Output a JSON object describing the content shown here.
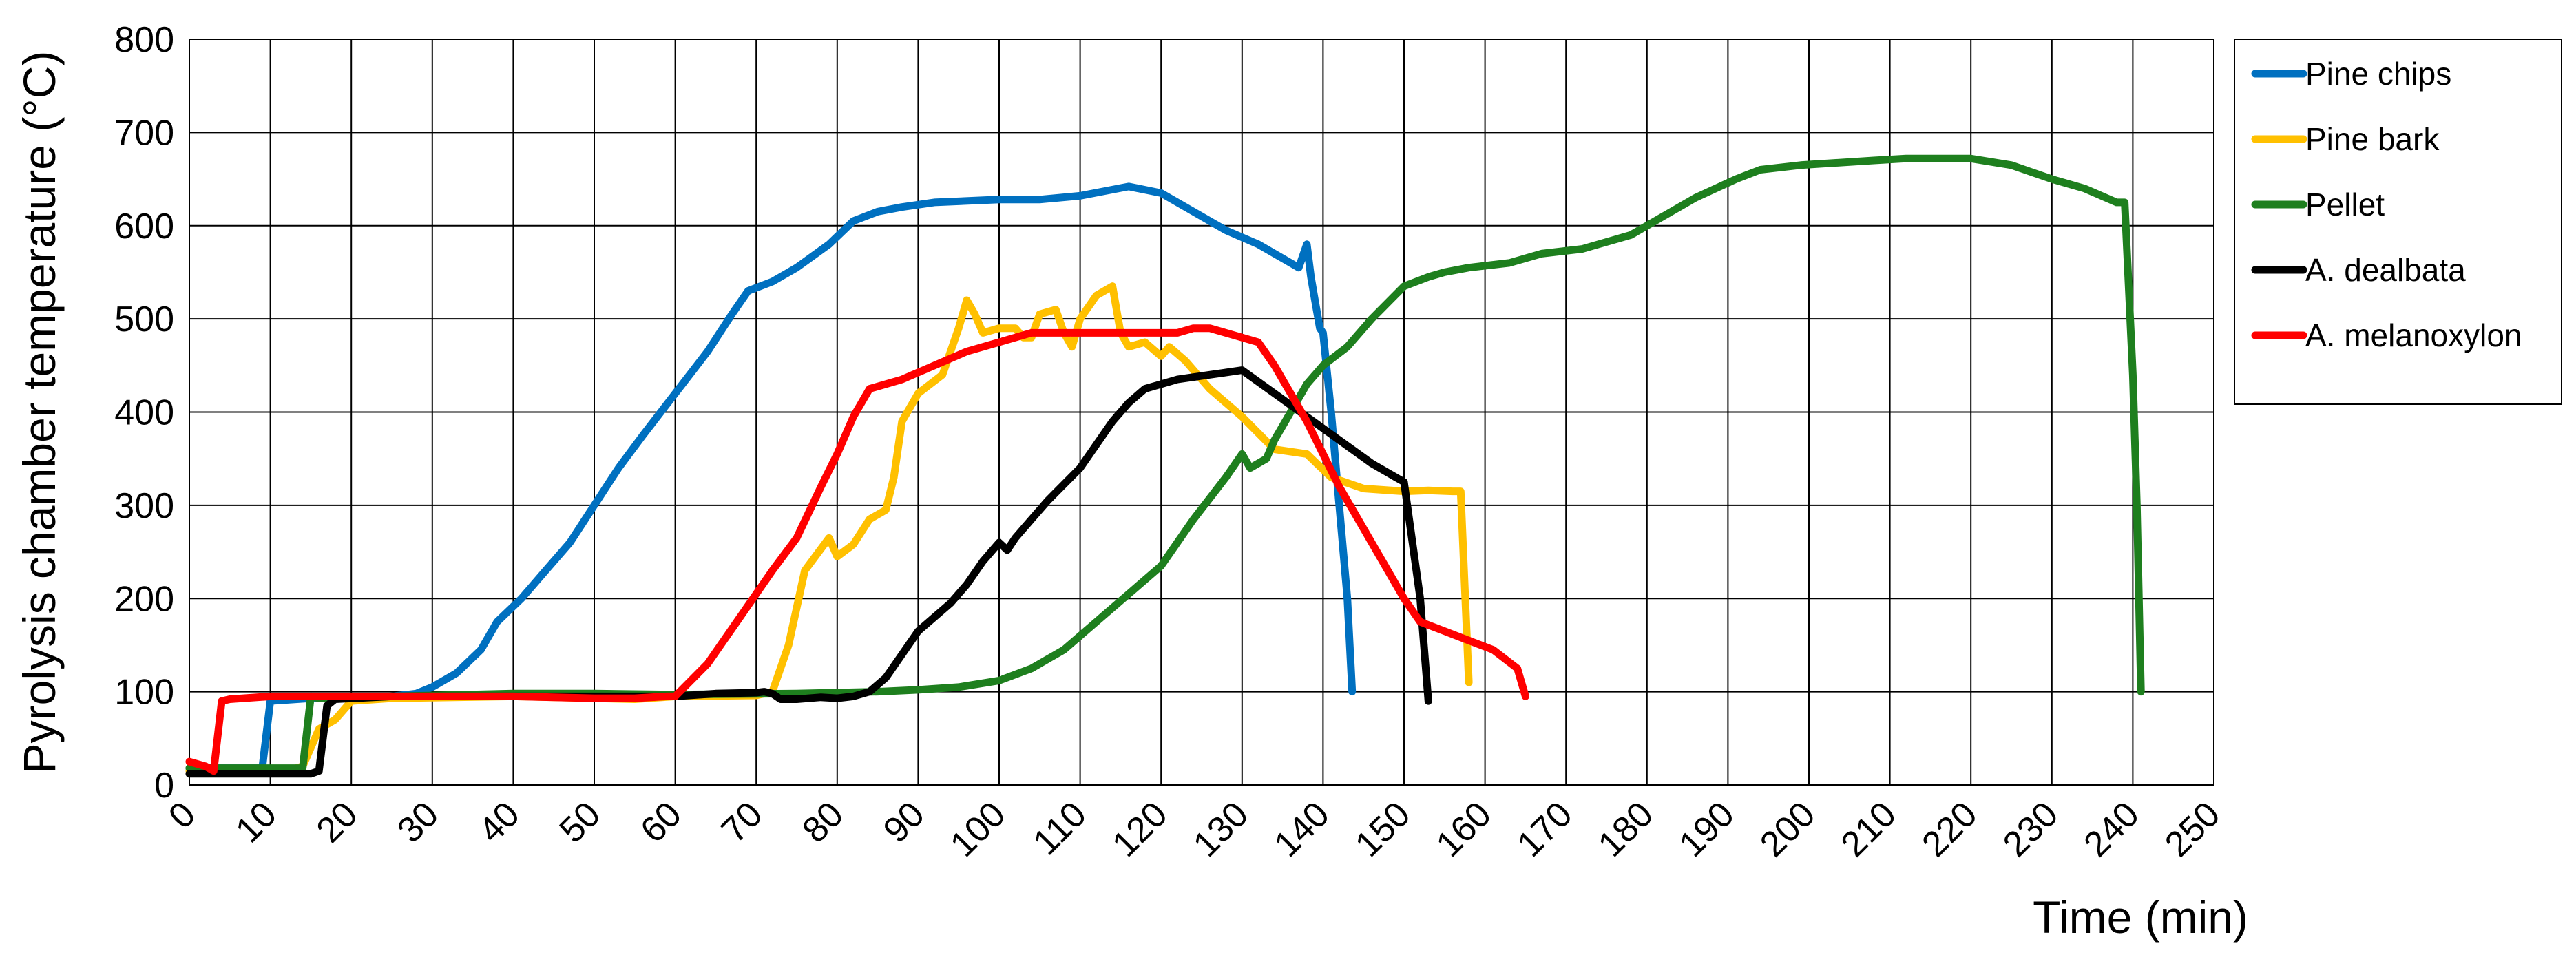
{
  "chart_data": {
    "type": "line",
    "xlabel": "Time (min)",
    "ylabel": "Pyrolysis chamber temperature (°C)",
    "xlim": [
      0,
      250
    ],
    "ylim": [
      0,
      800
    ],
    "x_ticks": [
      "0",
      "10",
      "20",
      "30",
      "40",
      "50",
      "60",
      "70",
      "80",
      "90",
      "100",
      "110",
      "120",
      "130",
      "140",
      "150",
      "160",
      "170",
      "180",
      "190",
      "200",
      "210",
      "220",
      "230",
      "240",
      "250"
    ],
    "y_ticks": [
      "0",
      "100",
      "200",
      "300",
      "400",
      "500",
      "600",
      "700",
      "800"
    ],
    "grid": true,
    "legend_position": "right",
    "series": [
      {
        "name": "Pine chips",
        "color": "#0070C0",
        "points": [
          [
            0,
            18
          ],
          [
            9,
            18
          ],
          [
            10,
            90
          ],
          [
            15,
            93
          ],
          [
            25,
            95
          ],
          [
            28,
            98
          ],
          [
            30,
            105
          ],
          [
            33,
            120
          ],
          [
            36,
            145
          ],
          [
            38,
            175
          ],
          [
            41,
            200
          ],
          [
            44,
            230
          ],
          [
            47,
            260
          ],
          [
            50,
            300
          ],
          [
            53,
            340
          ],
          [
            56,
            375
          ],
          [
            60,
            420
          ],
          [
            64,
            465
          ],
          [
            67,
            505
          ],
          [
            69,
            530
          ],
          [
            72,
            540
          ],
          [
            75,
            555
          ],
          [
            79,
            580
          ],
          [
            82,
            605
          ],
          [
            85,
            615
          ],
          [
            88,
            620
          ],
          [
            92,
            625
          ],
          [
            100,
            628
          ],
          [
            105,
            628
          ],
          [
            110,
            632
          ],
          [
            116,
            642
          ],
          [
            120,
            635
          ],
          [
            124,
            615
          ],
          [
            128,
            595
          ],
          [
            132,
            580
          ],
          [
            135,
            565
          ],
          [
            137,
            555
          ],
          [
            138,
            580
          ],
          [
            138.5,
            545
          ],
          [
            139,
            520
          ],
          [
            139.6,
            490
          ],
          [
            140,
            485
          ],
          [
            141,
            400
          ],
          [
            142,
            300
          ],
          [
            143,
            200
          ],
          [
            143.6,
            100
          ]
        ]
      },
      {
        "name": "Pine bark",
        "color": "#FFC000",
        "points": [
          [
            0,
            15
          ],
          [
            12,
            15
          ],
          [
            14,
            20
          ],
          [
            16,
            60
          ],
          [
            18,
            70
          ],
          [
            20,
            90
          ],
          [
            25,
            93
          ],
          [
            40,
            95
          ],
          [
            50,
            93
          ],
          [
            55,
            92
          ],
          [
            60,
            95
          ],
          [
            70,
            96
          ],
          [
            72,
            100
          ],
          [
            74,
            150
          ],
          [
            76,
            230
          ],
          [
            79,
            265
          ],
          [
            80,
            245
          ],
          [
            82,
            258
          ],
          [
            84,
            285
          ],
          [
            86,
            295
          ],
          [
            87,
            330
          ],
          [
            88,
            390
          ],
          [
            90,
            420
          ],
          [
            93,
            440
          ],
          [
            95,
            490
          ],
          [
            96,
            520
          ],
          [
            97,
            505
          ],
          [
            98,
            485
          ],
          [
            100,
            490
          ],
          [
            102,
            490
          ],
          [
            103,
            480
          ],
          [
            104,
            480
          ],
          [
            105,
            505
          ],
          [
            107,
            510
          ],
          [
            108,
            485
          ],
          [
            109,
            470
          ],
          [
            110,
            500
          ],
          [
            112,
            525
          ],
          [
            114,
            535
          ],
          [
            115,
            485
          ],
          [
            116,
            470
          ],
          [
            118,
            475
          ],
          [
            120,
            460
          ],
          [
            121,
            470
          ],
          [
            123,
            455
          ],
          [
            126,
            425
          ],
          [
            130,
            395
          ],
          [
            134,
            360
          ],
          [
            138,
            355
          ],
          [
            141,
            330
          ],
          [
            145,
            318
          ],
          [
            150,
            315
          ],
          [
            153,
            316
          ],
          [
            156,
            315
          ],
          [
            157,
            315
          ],
          [
            158,
            110
          ]
        ]
      },
      {
        "name": "Pellet",
        "color": "#1E7F1E",
        "points": [
          [
            0,
            18
          ],
          [
            14,
            18
          ],
          [
            15,
            95
          ],
          [
            16,
            93
          ],
          [
            25,
            95
          ],
          [
            40,
            98
          ],
          [
            50,
            98
          ],
          [
            60,
            97
          ],
          [
            75,
            98
          ],
          [
            85,
            100
          ],
          [
            90,
            102
          ],
          [
            95,
            105
          ],
          [
            100,
            112
          ],
          [
            104,
            125
          ],
          [
            108,
            145
          ],
          [
            112,
            175
          ],
          [
            116,
            205
          ],
          [
            120,
            235
          ],
          [
            124,
            285
          ],
          [
            128,
            330
          ],
          [
            130,
            355
          ],
          [
            131,
            340
          ],
          [
            133,
            350
          ],
          [
            134,
            370
          ],
          [
            136,
            400
          ],
          [
            138,
            430
          ],
          [
            140,
            450
          ],
          [
            143,
            470
          ],
          [
            146,
            500
          ],
          [
            150,
            535
          ],
          [
            153,
            545
          ],
          [
            155,
            550
          ],
          [
            158,
            555
          ],
          [
            163,
            560
          ],
          [
            167,
            570
          ],
          [
            172,
            575
          ],
          [
            178,
            590
          ],
          [
            186,
            630
          ],
          [
            191,
            650
          ],
          [
            194,
            660
          ],
          [
            199,
            665
          ],
          [
            208,
            670
          ],
          [
            212,
            672
          ],
          [
            220,
            672
          ],
          [
            225,
            665
          ],
          [
            230,
            650
          ],
          [
            234,
            640
          ],
          [
            238,
            625
          ],
          [
            239,
            625
          ],
          [
            240,
            440
          ],
          [
            240.5,
            300
          ],
          [
            241,
            100
          ]
        ]
      },
      {
        "name": "A. dealbata",
        "color": "#000000",
        "points": [
          [
            0,
            12
          ],
          [
            15,
            12
          ],
          [
            16,
            15
          ],
          [
            17,
            85
          ],
          [
            18,
            92
          ],
          [
            25,
            95
          ],
          [
            40,
            95
          ],
          [
            50,
            95
          ],
          [
            60,
            95
          ],
          [
            65,
            98
          ],
          [
            70,
            99
          ],
          [
            71,
            100
          ],
          [
            72,
            98
          ],
          [
            73,
            92
          ],
          [
            75,
            92
          ],
          [
            78,
            94
          ],
          [
            80,
            93
          ],
          [
            82,
            95
          ],
          [
            84,
            100
          ],
          [
            86,
            115
          ],
          [
            88,
            140
          ],
          [
            90,
            165
          ],
          [
            92,
            180
          ],
          [
            94,
            195
          ],
          [
            96,
            215
          ],
          [
            98,
            240
          ],
          [
            100,
            260
          ],
          [
            101,
            252
          ],
          [
            102,
            265
          ],
          [
            104,
            285
          ],
          [
            106,
            305
          ],
          [
            110,
            340
          ],
          [
            112,
            365
          ],
          [
            114,
            390
          ],
          [
            116,
            410
          ],
          [
            118,
            425
          ],
          [
            122,
            435
          ],
          [
            126,
            440
          ],
          [
            130,
            445
          ],
          [
            134,
            420
          ],
          [
            138,
            395
          ],
          [
            142,
            370
          ],
          [
            146,
            345
          ],
          [
            149,
            330
          ],
          [
            150,
            325
          ],
          [
            152,
            200
          ],
          [
            153,
            90
          ]
        ]
      },
      {
        "name": "A. melanoxylon",
        "color": "#FF0000",
        "points": [
          [
            0,
            25
          ],
          [
            2,
            20
          ],
          [
            3,
            15
          ],
          [
            4,
            90
          ],
          [
            5,
            92
          ],
          [
            10,
            95
          ],
          [
            20,
            95
          ],
          [
            30,
            95
          ],
          [
            40,
            95
          ],
          [
            50,
            93
          ],
          [
            55,
            93
          ],
          [
            59,
            95
          ],
          [
            60,
            95
          ],
          [
            64,
            130
          ],
          [
            68,
            180
          ],
          [
            72,
            230
          ],
          [
            75,
            265
          ],
          [
            78,
            320
          ],
          [
            80,
            355
          ],
          [
            82,
            395
          ],
          [
            84,
            425
          ],
          [
            88,
            435
          ],
          [
            92,
            450
          ],
          [
            96,
            465
          ],
          [
            100,
            475
          ],
          [
            104,
            485
          ],
          [
            110,
            485
          ],
          [
            118,
            485
          ],
          [
            122,
            485
          ],
          [
            124,
            490
          ],
          [
            126,
            490
          ],
          [
            128,
            485
          ],
          [
            132,
            475
          ],
          [
            134,
            450
          ],
          [
            138,
            390
          ],
          [
            142,
            320
          ],
          [
            146,
            260
          ],
          [
            150,
            200
          ],
          [
            152,
            175
          ],
          [
            155,
            165
          ],
          [
            158,
            155
          ],
          [
            161,
            145
          ],
          [
            164,
            125
          ],
          [
            165,
            95
          ]
        ]
      }
    ]
  }
}
